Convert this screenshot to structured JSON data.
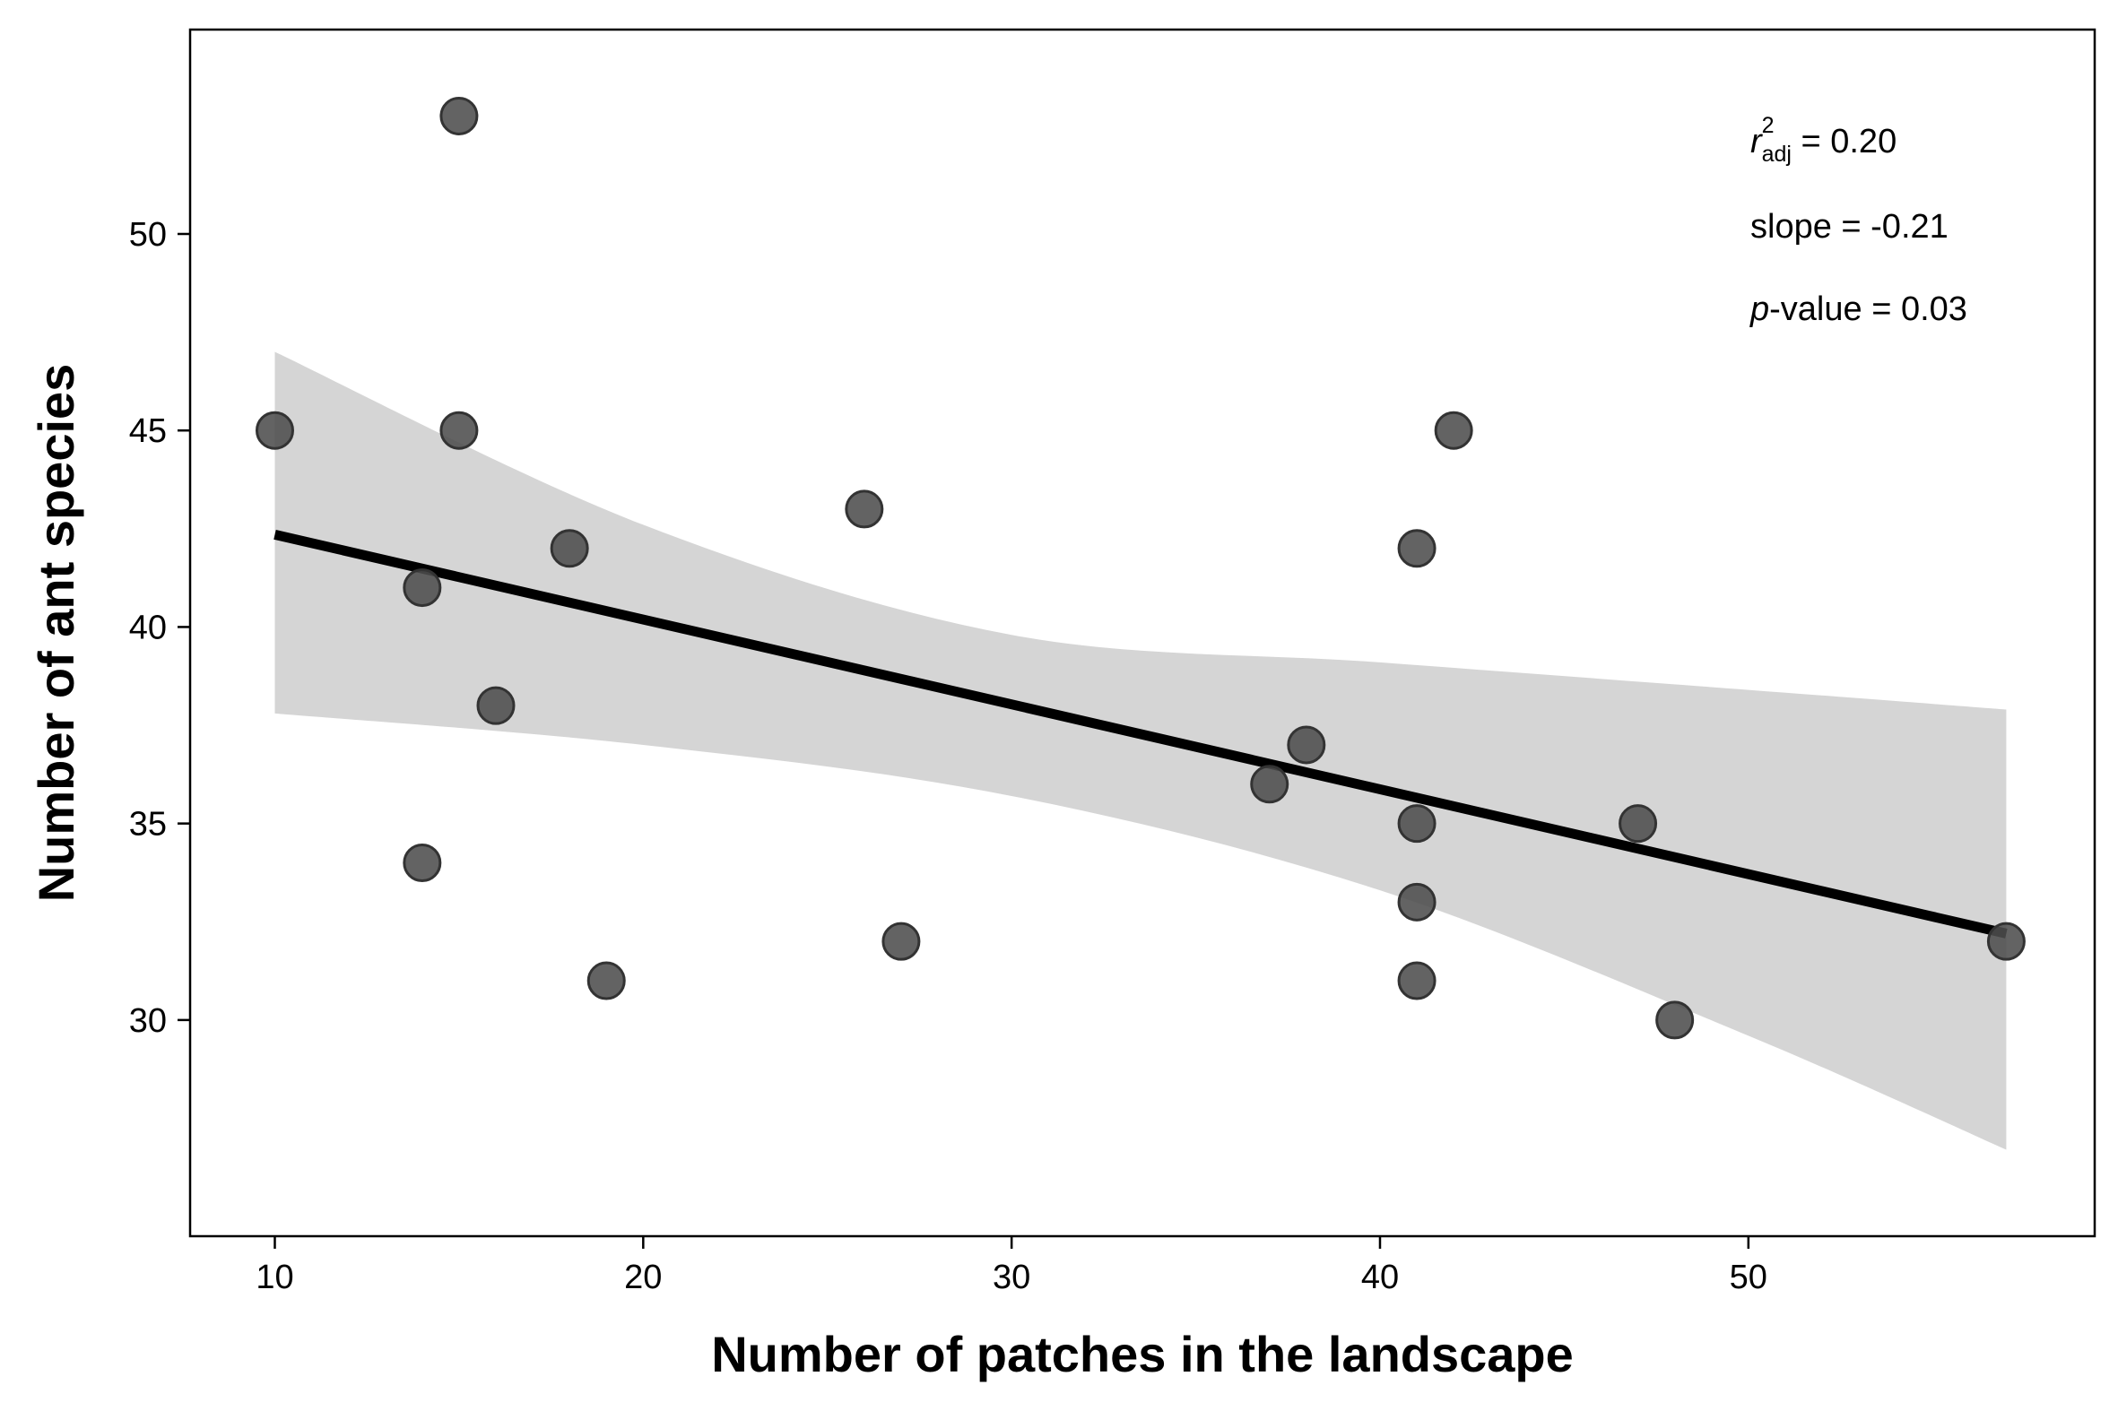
{
  "chart_data": {
    "type": "scatter",
    "xlabel": "Number of patches in the landscape",
    "ylabel": "Number of ant species",
    "xlim": [
      7.7,
      59.4
    ],
    "ylim": [
      24.5,
      55.2
    ],
    "xticks": [
      10,
      20,
      30,
      40,
      50
    ],
    "yticks": [
      30,
      35,
      40,
      45,
      50
    ],
    "grid": false,
    "legend": "none",
    "points": [
      {
        "x": 15,
        "y": 53
      },
      {
        "x": 10,
        "y": 45
      },
      {
        "x": 15,
        "y": 45
      },
      {
        "x": 42,
        "y": 45
      },
      {
        "x": 26,
        "y": 43
      },
      {
        "x": 18,
        "y": 42
      },
      {
        "x": 41,
        "y": 42
      },
      {
        "x": 14,
        "y": 41
      },
      {
        "x": 16,
        "y": 38
      },
      {
        "x": 38,
        "y": 37
      },
      {
        "x": 37,
        "y": 36
      },
      {
        "x": 41,
        "y": 35
      },
      {
        "x": 47,
        "y": 35
      },
      {
        "x": 14,
        "y": 34
      },
      {
        "x": 41,
        "y": 33
      },
      {
        "x": 27,
        "y": 32
      },
      {
        "x": 57,
        "y": 32
      },
      {
        "x": 19,
        "y": 31
      },
      {
        "x": 41,
        "y": 31
      },
      {
        "x": 48,
        "y": 30
      }
    ],
    "regression_line": {
      "x": [
        10,
        57
      ],
      "y": [
        42.35,
        32.2
      ]
    },
    "confidence_band": {
      "x": [
        10,
        20,
        30,
        40,
        50,
        57
      ],
      "upper": [
        47.0,
        42.6,
        39.8,
        39.1,
        38.4,
        37.9
      ],
      "lower": [
        37.8,
        37.0,
        35.7,
        33.3,
        29.6,
        26.7
      ]
    },
    "annotations": {
      "r2_symbol": "r",
      "r2_superscript": "2",
      "r2_subscript": "adj",
      "r2_value": " = 0.20",
      "slope": "slope = -0.21",
      "p_symbol": "p",
      "p_value": "-value = 0.03"
    },
    "colors": {
      "points": "#4d4d4d",
      "point_edge": "#333333",
      "line": "#000000",
      "band": "#d5d5d5"
    }
  }
}
